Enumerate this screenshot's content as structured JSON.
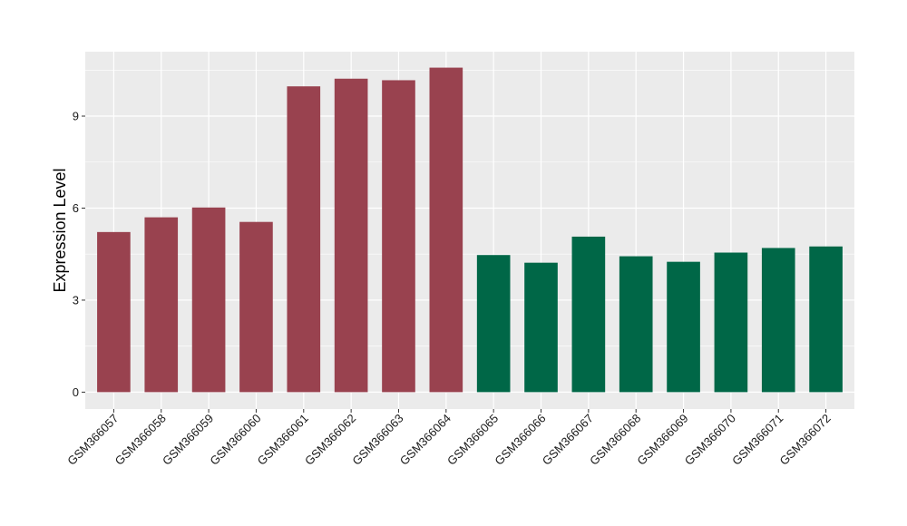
{
  "chart_data": {
    "type": "bar",
    "title": "",
    "xlabel": "",
    "ylabel": "Expression Level",
    "ylim": [
      -0.55,
      11.1
    ],
    "yticks": [
      0,
      3,
      6,
      9
    ],
    "grid": true,
    "categories": [
      "GSM366057",
      "GSM366058",
      "GSM366059",
      "GSM366060",
      "GSM366061",
      "GSM366062",
      "GSM366063",
      "GSM366064",
      "GSM366065",
      "GSM366066",
      "GSM366067",
      "GSM366068",
      "GSM366069",
      "GSM366070",
      "GSM366071",
      "GSM366072"
    ],
    "values": [
      5.22,
      5.7,
      6.02,
      5.55,
      9.97,
      10.22,
      10.17,
      10.58,
      4.47,
      4.22,
      5.07,
      4.43,
      4.25,
      4.55,
      4.7,
      4.75
    ],
    "colors": [
      "#99424F",
      "#99424F",
      "#99424F",
      "#99424F",
      "#99424F",
      "#99424F",
      "#99424F",
      "#99424F",
      "#006747",
      "#006747",
      "#006747",
      "#006747",
      "#006747",
      "#006747",
      "#006747",
      "#006747"
    ],
    "panel_background": "#EBEBEB",
    "grid_color": "#FFFFFF"
  }
}
